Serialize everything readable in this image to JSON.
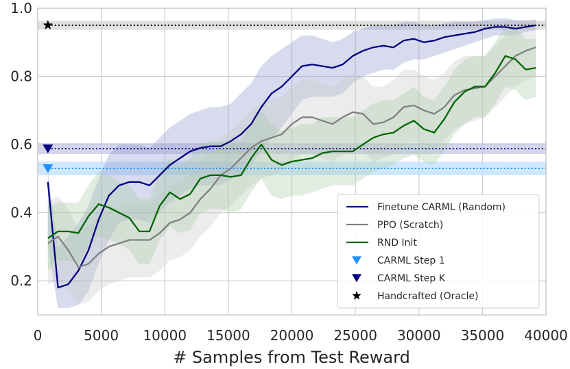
{
  "chart_data": {
    "type": "line",
    "title": "",
    "xlabel": "# Samples from Test Reward",
    "ylabel": "",
    "xlim": [
      0,
      40000
    ],
    "ylim": [
      0.1,
      1.0
    ],
    "xticks": [
      0,
      5000,
      10000,
      15000,
      20000,
      25000,
      30000,
      35000,
      40000
    ],
    "xtick_labels": [
      "0",
      "5000",
      "10000",
      "15000",
      "20000",
      "25000",
      "30000",
      "35000",
      "40000"
    ],
    "yticks": [
      0.2,
      0.4,
      0.6,
      0.8,
      1.0
    ],
    "ytick_labels": [
      "0.2",
      "0.4",
      "0.6",
      "0.8",
      "1.0"
    ],
    "grid": true,
    "legend_position": "lower-right",
    "series": [
      {
        "name": "Finetune CARML (Random)",
        "color": "#000080",
        "fill": "#9095cc",
        "x": [
          800,
          1600,
          2400,
          3200,
          4000,
          4800,
          5600,
          6400,
          7200,
          8000,
          8800,
          9600,
          10400,
          11200,
          12000,
          12800,
          13600,
          14400,
          15200,
          16000,
          16800,
          17600,
          18400,
          19200,
          20000,
          20800,
          21600,
          22400,
          23200,
          24000,
          24800,
          25600,
          26400,
          27200,
          28000,
          28800,
          29600,
          30400,
          31200,
          32000,
          32800,
          33600,
          34400,
          35200,
          36000,
          36800,
          37600,
          38400,
          39200
        ],
        "mean": [
          0.49,
          0.18,
          0.19,
          0.23,
          0.29,
          0.38,
          0.45,
          0.48,
          0.49,
          0.49,
          0.48,
          0.51,
          0.54,
          0.56,
          0.58,
          0.59,
          0.595,
          0.595,
          0.61,
          0.63,
          0.66,
          0.71,
          0.75,
          0.77,
          0.8,
          0.83,
          0.835,
          0.83,
          0.825,
          0.835,
          0.86,
          0.875,
          0.885,
          0.89,
          0.885,
          0.905,
          0.91,
          0.9,
          0.905,
          0.915,
          0.92,
          0.925,
          0.93,
          0.94,
          0.945,
          0.945,
          0.94,
          0.945,
          0.95
        ],
        "lower": [
          0.3,
          0.12,
          0.12,
          0.13,
          0.17,
          0.25,
          0.32,
          0.37,
          0.38,
          0.38,
          0.37,
          0.4,
          0.43,
          0.45,
          0.47,
          0.48,
          0.48,
          0.48,
          0.5,
          0.51,
          0.54,
          0.58,
          0.62,
          0.65,
          0.69,
          0.73,
          0.74,
          0.74,
          0.74,
          0.75,
          0.78,
          0.8,
          0.81,
          0.82,
          0.82,
          0.84,
          0.85,
          0.85,
          0.86,
          0.87,
          0.88,
          0.89,
          0.9,
          0.91,
          0.92,
          0.92,
          0.92,
          0.93,
          0.935
        ],
        "upper": [
          0.52,
          0.3,
          0.33,
          0.37,
          0.42,
          0.5,
          0.57,
          0.6,
          0.6,
          0.6,
          0.59,
          0.62,
          0.65,
          0.67,
          0.69,
          0.7,
          0.71,
          0.71,
          0.72,
          0.75,
          0.78,
          0.83,
          0.86,
          0.88,
          0.9,
          0.92,
          0.92,
          0.91,
          0.9,
          0.91,
          0.93,
          0.94,
          0.95,
          0.95,
          0.95,
          0.96,
          0.96,
          0.95,
          0.95,
          0.955,
          0.96,
          0.96,
          0.96,
          0.965,
          0.97,
          0.97,
          0.965,
          0.965,
          0.965
        ]
      },
      {
        "name": "PPO (Scratch)",
        "color": "#808080",
        "fill": "#c8c8c8",
        "x": [
          800,
          1600,
          2400,
          3200,
          4000,
          4800,
          5600,
          6400,
          7200,
          8000,
          8800,
          9600,
          10400,
          11200,
          12000,
          12800,
          13600,
          14400,
          15200,
          16000,
          16800,
          17600,
          18400,
          19200,
          20000,
          20800,
          21600,
          22400,
          23200,
          24000,
          24800,
          25600,
          26400,
          27200,
          28000,
          28800,
          29600,
          30400,
          31200,
          32000,
          32800,
          33600,
          34400,
          35200,
          36000,
          36800,
          37600,
          38400,
          39200
        ],
        "mean": [
          0.31,
          0.33,
          0.29,
          0.24,
          0.25,
          0.28,
          0.3,
          0.31,
          0.32,
          0.32,
          0.32,
          0.34,
          0.37,
          0.38,
          0.4,
          0.44,
          0.47,
          0.51,
          0.53,
          0.56,
          0.59,
          0.61,
          0.62,
          0.63,
          0.66,
          0.68,
          0.68,
          0.67,
          0.66,
          0.68,
          0.695,
          0.69,
          0.66,
          0.665,
          0.68,
          0.71,
          0.715,
          0.7,
          0.69,
          0.71,
          0.745,
          0.76,
          0.765,
          0.77,
          0.8,
          0.83,
          0.86,
          0.875,
          0.885
        ],
        "lower": [
          0.19,
          0.2,
          0.17,
          0.13,
          0.14,
          0.17,
          0.19,
          0.2,
          0.21,
          0.21,
          0.21,
          0.23,
          0.26,
          0.27,
          0.29,
          0.33,
          0.36,
          0.4,
          0.42,
          0.45,
          0.48,
          0.5,
          0.51,
          0.52,
          0.55,
          0.57,
          0.57,
          0.56,
          0.55,
          0.57,
          0.58,
          0.58,
          0.55,
          0.56,
          0.57,
          0.6,
          0.61,
          0.6,
          0.59,
          0.61,
          0.645,
          0.66,
          0.67,
          0.68,
          0.71,
          0.74,
          0.77,
          0.79,
          0.8
        ],
        "upper": [
          0.43,
          0.45,
          0.41,
          0.35,
          0.36,
          0.39,
          0.41,
          0.42,
          0.43,
          0.43,
          0.43,
          0.45,
          0.48,
          0.49,
          0.51,
          0.55,
          0.58,
          0.62,
          0.64,
          0.67,
          0.7,
          0.72,
          0.73,
          0.74,
          0.77,
          0.79,
          0.79,
          0.78,
          0.77,
          0.79,
          0.81,
          0.8,
          0.77,
          0.77,
          0.79,
          0.82,
          0.82,
          0.8,
          0.79,
          0.81,
          0.845,
          0.86,
          0.86,
          0.86,
          0.89,
          0.92,
          0.95,
          0.96,
          0.97
        ]
      },
      {
        "name": "RND Init",
        "color": "#006400",
        "fill": "#a8cca8",
        "x": [
          800,
          1600,
          2400,
          3200,
          4000,
          4800,
          5600,
          6400,
          7200,
          8000,
          8800,
          9600,
          10400,
          11200,
          12000,
          12800,
          13600,
          14400,
          15200,
          16000,
          16800,
          17600,
          18400,
          19200,
          20000,
          20800,
          21600,
          22400,
          23200,
          24000,
          24800,
          25600,
          26400,
          27200,
          28000,
          28800,
          29600,
          30400,
          31200,
          32000,
          32800,
          33600,
          34400,
          35200,
          36000,
          36800,
          37600,
          38400,
          39200
        ],
        "mean": [
          0.325,
          0.345,
          0.345,
          0.34,
          0.39,
          0.425,
          0.415,
          0.4,
          0.385,
          0.345,
          0.345,
          0.42,
          0.46,
          0.44,
          0.455,
          0.5,
          0.51,
          0.51,
          0.505,
          0.51,
          0.56,
          0.6,
          0.555,
          0.54,
          0.55,
          0.555,
          0.56,
          0.575,
          0.58,
          0.58,
          0.58,
          0.6,
          0.62,
          0.63,
          0.635,
          0.655,
          0.67,
          0.645,
          0.635,
          0.675,
          0.725,
          0.755,
          0.77,
          0.77,
          0.81,
          0.86,
          0.85,
          0.82,
          0.825
        ],
        "lower": [
          0.23,
          0.26,
          0.26,
          0.25,
          0.3,
          0.33,
          0.32,
          0.31,
          0.29,
          0.25,
          0.25,
          0.32,
          0.36,
          0.34,
          0.35,
          0.4,
          0.41,
          0.41,
          0.4,
          0.41,
          0.46,
          0.5,
          0.45,
          0.44,
          0.45,
          0.45,
          0.46,
          0.47,
          0.48,
          0.48,
          0.48,
          0.5,
          0.52,
          0.53,
          0.54,
          0.56,
          0.57,
          0.55,
          0.54,
          0.58,
          0.63,
          0.66,
          0.68,
          0.68,
          0.72,
          0.77,
          0.76,
          0.73,
          0.74
        ],
        "upper": [
          0.42,
          0.43,
          0.43,
          0.43,
          0.48,
          0.52,
          0.51,
          0.49,
          0.48,
          0.44,
          0.44,
          0.52,
          0.56,
          0.54,
          0.56,
          0.6,
          0.61,
          0.61,
          0.61,
          0.61,
          0.66,
          0.7,
          0.66,
          0.64,
          0.65,
          0.66,
          0.66,
          0.68,
          0.68,
          0.68,
          0.68,
          0.7,
          0.72,
          0.73,
          0.73,
          0.75,
          0.77,
          0.74,
          0.73,
          0.77,
          0.82,
          0.85,
          0.86,
          0.86,
          0.9,
          0.95,
          0.94,
          0.91,
          0.91
        ]
      }
    ],
    "reference_lines": [
      {
        "name": "CARML Step 1",
        "y": 0.53,
        "band": [
          0.51,
          0.55
        ],
        "color": "#1e90ff",
        "fill": "#bfe0ff",
        "marker": "triangle-down",
        "marker_x": 800
      },
      {
        "name": "CARML Step K",
        "y": 0.588,
        "band": [
          0.572,
          0.604
        ],
        "color": "#000080",
        "fill": "#c5c8e6",
        "marker": "triangle-down",
        "marker_x": 800
      },
      {
        "name": "Handcrafted (Oracle)",
        "y": 0.95,
        "band": [
          0.937,
          0.963
        ],
        "color": "#000000",
        "fill": "#d4d4d4",
        "marker": "star",
        "marker_x": 800
      }
    ],
    "legend": [
      {
        "label": "Finetune CARML (Random)",
        "kind": "line",
        "color": "#000080"
      },
      {
        "label": "PPO (Scratch)",
        "kind": "line",
        "color": "#808080"
      },
      {
        "label": "RND Init",
        "kind": "line",
        "color": "#006400"
      },
      {
        "label": "CARML Step 1",
        "kind": "triangle-down",
        "color": "#1e90ff"
      },
      {
        "label": "CARML Step K",
        "kind": "triangle-down",
        "color": "#000080"
      },
      {
        "label": "Handcrafted (Oracle)",
        "kind": "star",
        "color": "#000000"
      }
    ]
  }
}
